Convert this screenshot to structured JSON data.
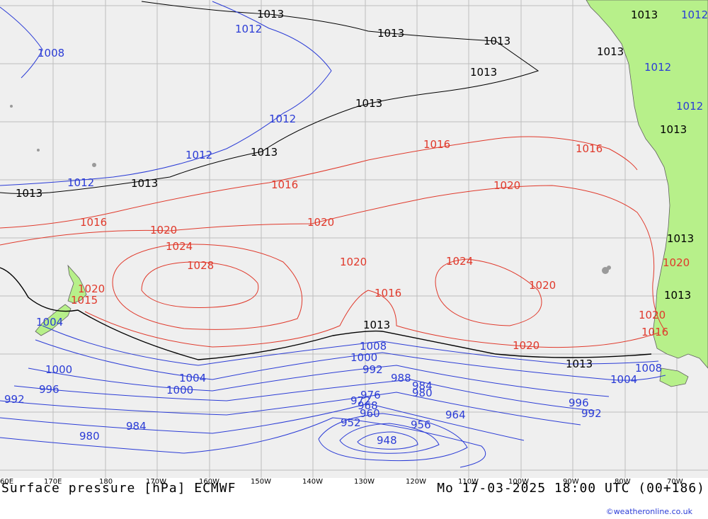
{
  "map": {
    "title": "Surface pressure [hPa] ECMWF",
    "valid_time": "Mo 17-03-2025 18:00 UTC (00+186)",
    "credit": "©weatheronline.co.uk",
    "colors": {
      "ocean": "#efefef",
      "land": "#b7f08a",
      "grid": "#bdbdbd",
      "isobar_low": "#2b3cd6",
      "isobar_ref": "#000000",
      "isobar_high": "#e0392b"
    },
    "longitude_labels": [
      "60E",
      "170E",
      "180",
      "170W",
      "160W",
      "150W",
      "140W",
      "130W",
      "120W",
      "110W",
      "100W",
      "90W",
      "80W",
      "70W"
    ],
    "isobar_labels": [
      {
        "text": "1013",
        "color": "black"
      },
      {
        "text": "1013",
        "color": "black"
      },
      {
        "text": "1013",
        "color": "black"
      },
      {
        "text": "1013",
        "color": "black"
      },
      {
        "text": "1013",
        "color": "black"
      },
      {
        "text": "1013",
        "color": "black"
      },
      {
        "text": "1013",
        "color": "black"
      },
      {
        "text": "1013",
        "color": "black"
      },
      {
        "text": "1013",
        "color": "black"
      },
      {
        "text": "1013",
        "color": "black"
      },
      {
        "text": "1013",
        "color": "black"
      },
      {
        "text": "1013",
        "color": "black"
      },
      {
        "text": "1013",
        "color": "black"
      },
      {
        "text": "1013",
        "color": "black"
      },
      {
        "text": "1013",
        "color": "black"
      },
      {
        "text": "1012",
        "color": "blue"
      },
      {
        "text": "1008",
        "color": "blue"
      },
      {
        "text": "1012",
        "color": "blue"
      },
      {
        "text": "1012",
        "color": "blue"
      },
      {
        "text": "1012",
        "color": "blue"
      },
      {
        "text": "1012",
        "color": "blue"
      },
      {
        "text": "1012",
        "color": "blue"
      },
      {
        "text": "1016",
        "color": "red"
      },
      {
        "text": "1016",
        "color": "red"
      },
      {
        "text": "1016",
        "color": "red"
      },
      {
        "text": "1016",
        "color": "red"
      },
      {
        "text": "1016",
        "color": "red"
      },
      {
        "text": "1016",
        "color": "red"
      },
      {
        "text": "1020",
        "color": "red"
      },
      {
        "text": "1020",
        "color": "red"
      },
      {
        "text": "1020",
        "color": "red"
      },
      {
        "text": "1020",
        "color": "red"
      },
      {
        "text": "1020",
        "color": "red"
      },
      {
        "text": "1020",
        "color": "red"
      },
      {
        "text": "1020",
        "color": "red"
      },
      {
        "text": "1020",
        "color": "red"
      },
      {
        "text": "1020",
        "color": "red"
      },
      {
        "text": "1024",
        "color": "red"
      },
      {
        "text": "1024",
        "color": "red"
      },
      {
        "text": "1028",
        "color": "red"
      },
      {
        "text": "1015",
        "color": "red"
      },
      {
        "text": "1004",
        "color": "blue"
      },
      {
        "text": "1000",
        "color": "blue"
      },
      {
        "text": "996",
        "color": "blue"
      },
      {
        "text": "992",
        "color": "blue"
      },
      {
        "text": "984",
        "color": "blue"
      },
      {
        "text": "980",
        "color": "blue"
      },
      {
        "text": "1004",
        "color": "blue"
      },
      {
        "text": "1000",
        "color": "blue"
      },
      {
        "text": "1008",
        "color": "blue"
      },
      {
        "text": "1000",
        "color": "blue"
      },
      {
        "text": "992",
        "color": "blue"
      },
      {
        "text": "988",
        "color": "blue"
      },
      {
        "text": "984",
        "color": "blue"
      },
      {
        "text": "980",
        "color": "blue"
      },
      {
        "text": "976",
        "color": "blue"
      },
      {
        "text": "972",
        "color": "blue"
      },
      {
        "text": "968",
        "color": "blue"
      },
      {
        "text": "960",
        "color": "blue"
      },
      {
        "text": "964",
        "color": "blue"
      },
      {
        "text": "956",
        "color": "blue"
      },
      {
        "text": "952",
        "color": "blue"
      },
      {
        "text": "948",
        "color": "blue"
      },
      {
        "text": "1008",
        "color": "blue"
      },
      {
        "text": "1004",
        "color": "blue"
      },
      {
        "text": "996",
        "color": "blue"
      },
      {
        "text": "992",
        "color": "blue"
      },
      {
        "text": "1012",
        "color": "blue"
      }
    ]
  }
}
